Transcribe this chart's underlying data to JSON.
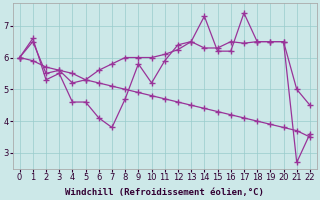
{
  "xlabel": "Windchill (Refroidissement éolien,°C)",
  "line_jagged_y": [
    6.0,
    6.6,
    5.3,
    5.5,
    4.6,
    4.6,
    4.1,
    3.8,
    4.7,
    5.8,
    5.2,
    5.9,
    6.4,
    6.5,
    7.3,
    6.2,
    6.2,
    7.4,
    6.5,
    6.5,
    6.5,
    2.7,
    3.6
  ],
  "line_desc_y": [
    6.0,
    5.9,
    5.7,
    5.6,
    5.5,
    5.3,
    5.2,
    5.1,
    5.0,
    4.9,
    4.8,
    4.7,
    4.6,
    4.5,
    4.4,
    4.3,
    4.2,
    4.1,
    4.0,
    3.9,
    3.8,
    3.7,
    3.5
  ],
  "line_mid_y": [
    6.0,
    6.5,
    5.5,
    5.6,
    5.2,
    5.3,
    5.6,
    5.8,
    6.0,
    6.0,
    6.0,
    6.1,
    6.25,
    6.5,
    6.3,
    6.3,
    6.5,
    6.45,
    6.5,
    6.5,
    6.5,
    5.0,
    4.5
  ],
  "color": "#993399",
  "bg_color": "#cce8e8",
  "grid_color": "#99cccc",
  "ylim": [
    2.5,
    7.7
  ],
  "xlim": [
    -0.5,
    22.5
  ],
  "yticks": [
    3,
    4,
    5,
    6,
    7
  ],
  "xticks": [
    0,
    1,
    2,
    3,
    4,
    5,
    6,
    7,
    8,
    9,
    10,
    11,
    12,
    13,
    14,
    15,
    16,
    17,
    18,
    19,
    20,
    21,
    22
  ],
  "xlabel_fontsize": 6.5,
  "tick_fontsize": 6
}
